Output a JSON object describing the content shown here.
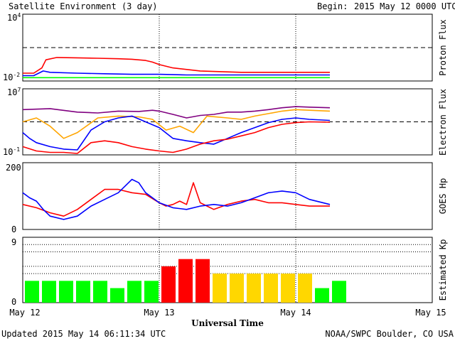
{
  "header": {
    "title": "Satellite Environment (3 day)",
    "begin_label": "Begin:",
    "begin_value": "2015 May 12 0000 UTC"
  },
  "footer": {
    "updated": "Updated 2015 May 14 06:11:34 UTC",
    "credit": "NOAA/SWPC Boulder, CO USA"
  },
  "x_axis": {
    "label": "Universal Time",
    "ticks": [
      "May 12",
      "May 13",
      "May 14",
      "May 15"
    ],
    "range_days": [
      0,
      3
    ]
  },
  "chart_data": [
    {
      "type": "line",
      "ylabel": "Proton Flux",
      "yscale": "log",
      "ylim": [
        0.01,
        10000
      ],
      "ytick_base": "10",
      "ytick_top_exp": "4",
      "ytick_bottom_exp": "-2",
      "threshold": 10,
      "series": [
        {
          "color": "#ff0000",
          "x": [
            0.0,
            0.08,
            0.14,
            0.17,
            0.25,
            0.4,
            0.55,
            0.7,
            0.8,
            0.9,
            0.95,
            1.0,
            1.1,
            1.3,
            1.6,
            1.9,
            2.1,
            2.25
          ],
          "y": [
            0.05,
            0.05,
            0.15,
            0.8,
            1.3,
            1.2,
            1.1,
            1.0,
            0.9,
            0.7,
            0.5,
            0.3,
            0.15,
            0.08,
            0.06,
            0.06,
            0.06,
            0.06
          ]
        },
        {
          "color": "#0000ff",
          "x": [
            0.0,
            0.08,
            0.15,
            0.2,
            0.4,
            0.6,
            0.8,
            1.0,
            1.2,
            1.5,
            1.8,
            2.1,
            2.25
          ],
          "y": [
            0.03,
            0.03,
            0.08,
            0.06,
            0.05,
            0.045,
            0.04,
            0.04,
            0.035,
            0.035,
            0.035,
            0.035,
            0.035
          ]
        },
        {
          "color": "#00ff00",
          "x": [
            0.0,
            0.2,
            0.4,
            0.6,
            0.8,
            1.0,
            1.2,
            1.5,
            1.8,
            2.1,
            2.25
          ],
          "y": [
            0.02,
            0.02,
            0.02,
            0.02,
            0.02,
            0.02,
            0.02,
            0.02,
            0.02,
            0.02,
            0.02
          ]
        }
      ]
    },
    {
      "type": "line",
      "ylabel": "Electron Flux",
      "yscale": "log",
      "ylim": [
        0.1,
        10000000
      ],
      "ytick_base": "10",
      "ytick_top_exp": "7",
      "ytick_bottom_exp": "-1",
      "threshold": 1000,
      "series": [
        {
          "color": "#800080",
          "x": [
            0.0,
            0.2,
            0.4,
            0.55,
            0.7,
            0.85,
            0.95,
            1.0,
            1.1,
            1.2,
            1.3,
            1.4,
            1.5,
            1.6,
            1.7,
            1.8,
            1.9,
            2.0,
            2.1,
            2.25
          ],
          "y": [
            30000,
            40000,
            15000,
            12000,
            20000,
            18000,
            25000,
            20000,
            8000,
            3000,
            6000,
            8000,
            15000,
            15000,
            20000,
            30000,
            50000,
            70000,
            60000,
            50000
          ]
        },
        {
          "color": "#ffa500",
          "x": [
            0.0,
            0.1,
            0.2,
            0.3,
            0.4,
            0.55,
            0.7,
            0.85,
            0.95,
            1.05,
            1.15,
            1.25,
            1.35,
            1.5,
            1.6,
            1.7,
            1.8,
            1.9,
            2.0,
            2.1,
            2.25
          ],
          "y": [
            1000,
            3000,
            300,
            10,
            50,
            3000,
            5000,
            4000,
            2000,
            100,
            300,
            50,
            5000,
            3000,
            2000,
            5000,
            10000,
            20000,
            30000,
            25000,
            20000
          ]
        },
        {
          "color": "#0000ff",
          "x": [
            0.0,
            0.05,
            0.1,
            0.2,
            0.3,
            0.4,
            0.5,
            0.6,
            0.7,
            0.8,
            0.9,
            1.0,
            1.1,
            1.2,
            1.3,
            1.4,
            1.5,
            1.6,
            1.7,
            1.8,
            1.9,
            2.0,
            2.1,
            2.25
          ],
          "y": [
            50,
            10,
            3,
            1,
            0.5,
            0.4,
            100,
            1000,
            3000,
            5000,
            1000,
            200,
            10,
            5,
            3,
            2,
            10,
            50,
            200,
            800,
            2000,
            3000,
            2000,
            1500
          ]
        },
        {
          "color": "#ff0000",
          "x": [
            0.0,
            0.1,
            0.2,
            0.3,
            0.4,
            0.5,
            0.6,
            0.7,
            0.8,
            0.9,
            1.0,
            1.1,
            1.2,
            1.3,
            1.4,
            1.5,
            1.6,
            1.7,
            1.8,
            1.9,
            2.0,
            2.1,
            2.25
          ],
          "y": [
            1,
            0.3,
            0.2,
            0.2,
            0.15,
            3,
            5,
            3,
            1,
            0.5,
            0.3,
            0.2,
            0.5,
            2,
            5,
            8,
            20,
            50,
            200,
            500,
            800,
            1000,
            900
          ]
        }
      ]
    },
    {
      "type": "line",
      "ylabel": "GOES Hp",
      "ylim": [
        0,
        200
      ],
      "yticks": [
        "0",
        "200"
      ],
      "series": [
        {
          "color": "#ff0000",
          "x": [
            0.0,
            0.1,
            0.2,
            0.3,
            0.4,
            0.5,
            0.6,
            0.7,
            0.8,
            0.9,
            1.0,
            1.05,
            1.1,
            1.15,
            1.2,
            1.25,
            1.3,
            1.35,
            1.4,
            1.5,
            1.6,
            1.7,
            1.8,
            1.9,
            2.0,
            2.1,
            2.25
          ],
          "y": [
            75,
            65,
            50,
            40,
            60,
            90,
            120,
            120,
            110,
            105,
            80,
            70,
            75,
            85,
            75,
            140,
            80,
            70,
            60,
            75,
            85,
            90,
            80,
            80,
            75,
            70,
            70
          ]
        },
        {
          "color": "#0000ff",
          "x": [
            0.0,
            0.05,
            0.1,
            0.15,
            0.2,
            0.3,
            0.4,
            0.5,
            0.6,
            0.7,
            0.8,
            0.85,
            0.9,
            1.0,
            1.1,
            1.2,
            1.3,
            1.4,
            1.5,
            1.6,
            1.7,
            1.8,
            1.9,
            2.0,
            2.1,
            2.25
          ],
          "y": [
            110,
            95,
            85,
            60,
            40,
            30,
            40,
            70,
            90,
            110,
            150,
            140,
            110,
            80,
            65,
            60,
            70,
            75,
            70,
            80,
            95,
            110,
            115,
            110,
            90,
            75
          ]
        }
      ]
    },
    {
      "type": "bar",
      "ylabel": "Estimated Kp",
      "ylim": [
        0,
        9
      ],
      "yticks": [
        "0",
        "9"
      ],
      "bar_hours": 3,
      "values": [
        3,
        3,
        3,
        3,
        3,
        2,
        3,
        3,
        5,
        6,
        6,
        4,
        4,
        4,
        4,
        4,
        4,
        2,
        3
      ],
      "colors": [
        "#00ff00",
        "#00ff00",
        "#00ff00",
        "#00ff00",
        "#00ff00",
        "#00ff00",
        "#00ff00",
        "#00ff00",
        "#ff0000",
        "#ff0000",
        "#ff0000",
        "#ffd700",
        "#ffd700",
        "#ffd700",
        "#ffd700",
        "#ffd700",
        "#ffd700",
        "#00ff00",
        "#00ff00"
      ]
    }
  ]
}
